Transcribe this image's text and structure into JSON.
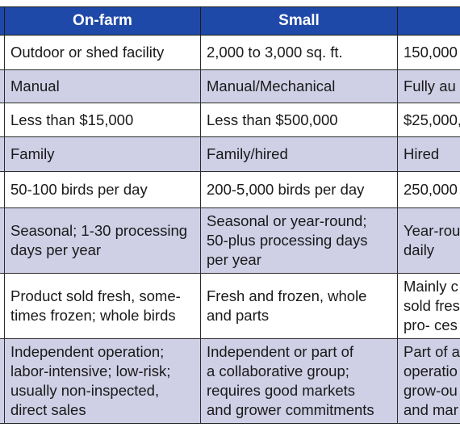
{
  "table": {
    "headers": [
      "",
      "On-farm",
      "Small",
      ""
    ],
    "rows": [
      [
        "",
        "Outdoor or shed facility",
        "2,000 to 3,000 sq. ft.",
        "150,000"
      ],
      [
        "",
        "Manual",
        "Manual/Mechanical",
        "Fully au"
      ],
      [
        "",
        "Less than $15,000",
        "Less than $500,000",
        "$25,000,"
      ],
      [
        "",
        "Family",
        "Family/hired",
        "Hired"
      ],
      [
        "",
        "50-100 birds per day",
        "200-5,000 birds per day",
        "250,000"
      ],
      [
        "",
        [
          "Seasonal; 1-30 processing",
          "days per year"
        ],
        [
          "Seasonal or year-round;",
          "50-plus processing days",
          "per year"
        ],
        [
          "Year-rou",
          "daily"
        ]
      ],
      [
        "",
        [
          "Product sold fresh, some-",
          "times frozen; whole birds"
        ],
        [
          "Fresh and frozen, whole",
          "and parts"
        ],
        [
          "Mainly c",
          "sold fres",
          "pro- ces"
        ]
      ],
      [
        "",
        [
          "Independent operation;",
          "labor-intensive; low-risk;",
          "usually non-inspected,",
          "direct sales"
        ],
        [
          "Independent or part of",
          "a collaborative group;",
          "requires good markets",
          "and grower commitments"
        ],
        [
          "Part of a",
          "operatio",
          "grow-ou",
          "and mar"
        ]
      ]
    ]
  }
}
